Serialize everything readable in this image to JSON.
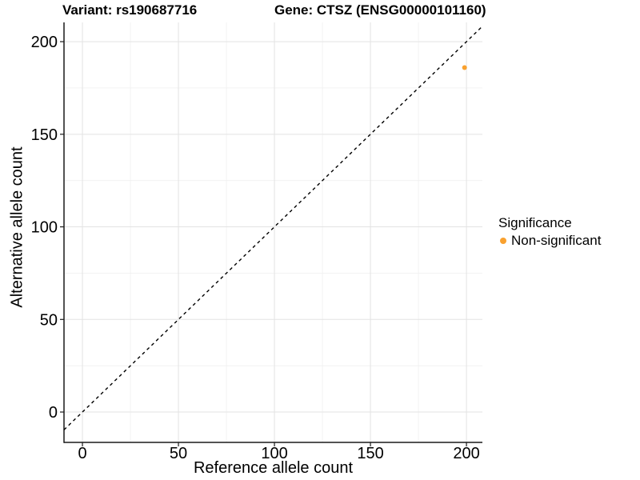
{
  "title_left": "Variant: rs190687716",
  "title_right": "Gene: CTSZ (ENSG00000101160)",
  "chart_data": {
    "type": "scatter",
    "title": "Variant: rs190687716  |  Gene: CTSZ (ENSG00000101160)",
    "xlabel": "Reference allele count",
    "ylabel": "Alternative allele count",
    "x_ticks": [
      0,
      50,
      100,
      150,
      200
    ],
    "y_ticks": [
      0,
      50,
      100,
      150,
      200
    ],
    "x_minor_ticks": [
      25,
      75,
      125,
      175
    ],
    "y_minor_ticks": [
      25,
      75,
      125,
      175
    ],
    "xlim": [
      -9.6,
      208.3
    ],
    "ylim": [
      -16.4,
      210.4
    ],
    "grid": true,
    "series": [
      {
        "name": "Non-significant",
        "color": "#F9A12F",
        "points": [
          {
            "x": 199,
            "y": 186
          }
        ]
      }
    ],
    "reference_line": {
      "kind": "identity y=x",
      "style": "dashed",
      "color": "#000000"
    },
    "legend": {
      "title": "Significance",
      "position": "right",
      "items": [
        {
          "label": "Non-significant",
          "color": "#F9A12F"
        }
      ]
    }
  },
  "colors": {
    "background": "#FFFFFF",
    "point": "#F9A12F",
    "axis_line": "#1A1A1A",
    "grid_major": "#E3E3E3",
    "grid_minor": "#F0F0F0",
    "text": "#000000"
  }
}
